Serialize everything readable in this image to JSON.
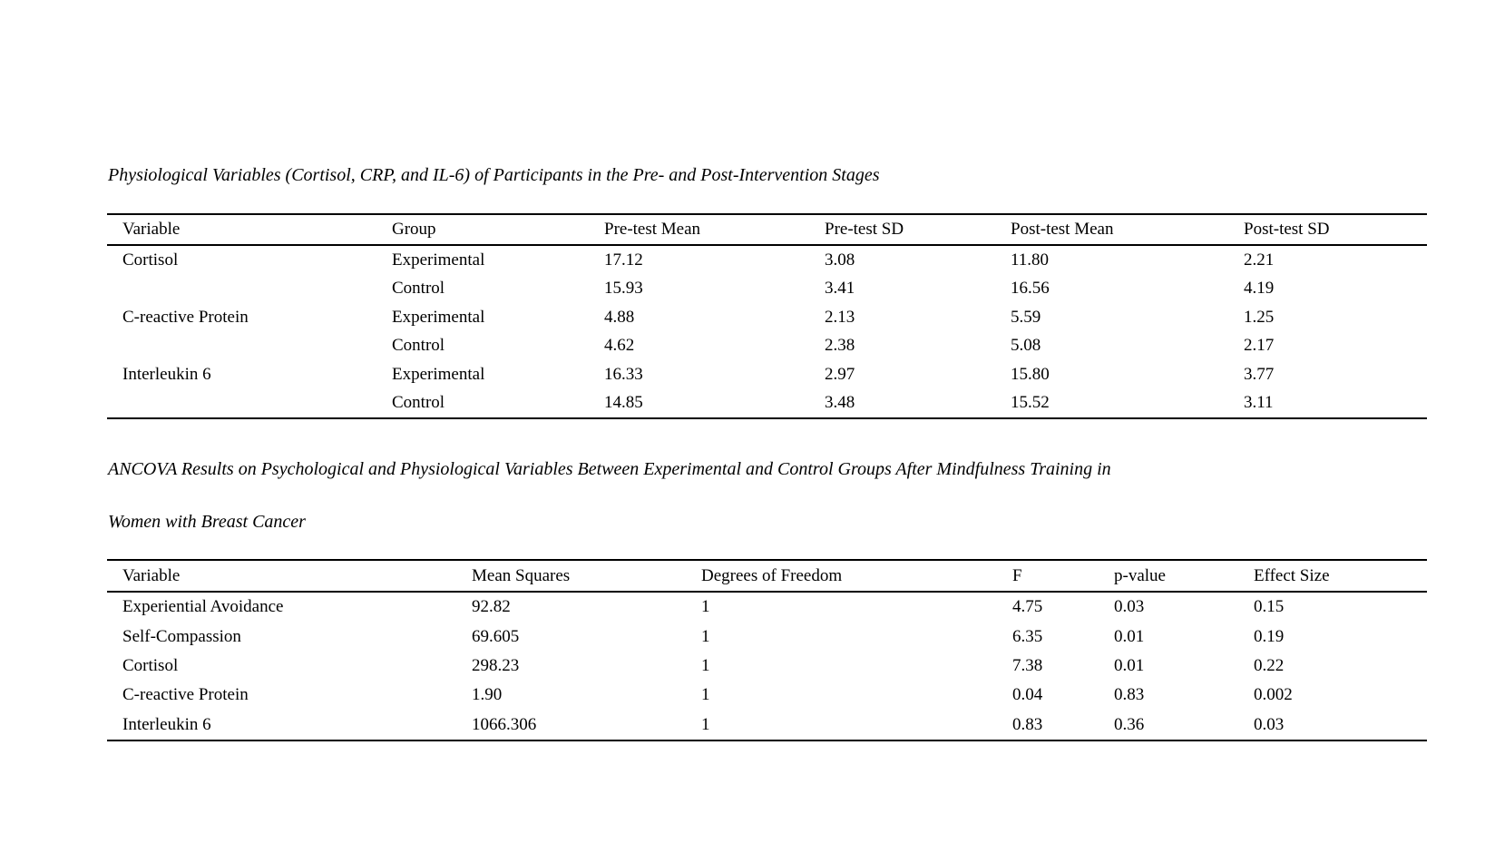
{
  "page": {
    "background_color": "#ffffff",
    "text_color": "#000000"
  },
  "tables": {
    "table1": {
      "caption": "Physiological Variables (Cortisol, CRP, and IL-6) of Participants in the Pre- and Post-Intervention Stages",
      "columns": [
        "Variable",
        "Group",
        "Pre-test Mean",
        "Pre-test SD",
        "Post-test Mean",
        "Post-test SD"
      ],
      "rows": [
        [
          "Cortisol",
          "Experimental",
          "17.12",
          "3.08",
          "11.80",
          "2.21"
        ],
        [
          "",
          "Control",
          "15.93",
          "3.41",
          "16.56",
          "4.19"
        ],
        [
          "C-reactive Protein",
          "Experimental",
          "4.88",
          "2.13",
          "5.59",
          "1.25"
        ],
        [
          "",
          "Control",
          "4.62",
          "2.38",
          "5.08",
          "2.17"
        ],
        [
          "Interleukin 6",
          "Experimental",
          "16.33",
          "2.97",
          "15.80",
          "3.77"
        ],
        [
          "",
          "Control",
          "14.85",
          "3.48",
          "15.52",
          "3.11"
        ]
      ]
    },
    "table2": {
      "caption_lines": [
        "ANCOVA Results on Psychological and Physiological Variables Between Experimental and Control Groups After Mindfulness Training in",
        "Women with Breast Cancer"
      ],
      "columns": [
        "Variable",
        "Mean Squares",
        "Degrees of Freedom",
        "F",
        "p-value",
        "Effect Size"
      ],
      "rows": [
        [
          "Experiential Avoidance",
          "92.82",
          "1",
          "4.75",
          "0.03",
          "0.15"
        ],
        [
          "Self-Compassion",
          "69.605",
          "1",
          "6.35",
          "0.01",
          "0.19"
        ],
        [
          "Cortisol",
          "298.23",
          "1",
          "7.38",
          "0.01",
          "0.22"
        ],
        [
          "C-reactive Protein",
          "1.90",
          "1",
          "0.04",
          "0.83",
          "0.002"
        ],
        [
          "Interleukin 6",
          "1066.306",
          "1",
          "0.83",
          "0.36",
          "0.03"
        ]
      ]
    }
  }
}
